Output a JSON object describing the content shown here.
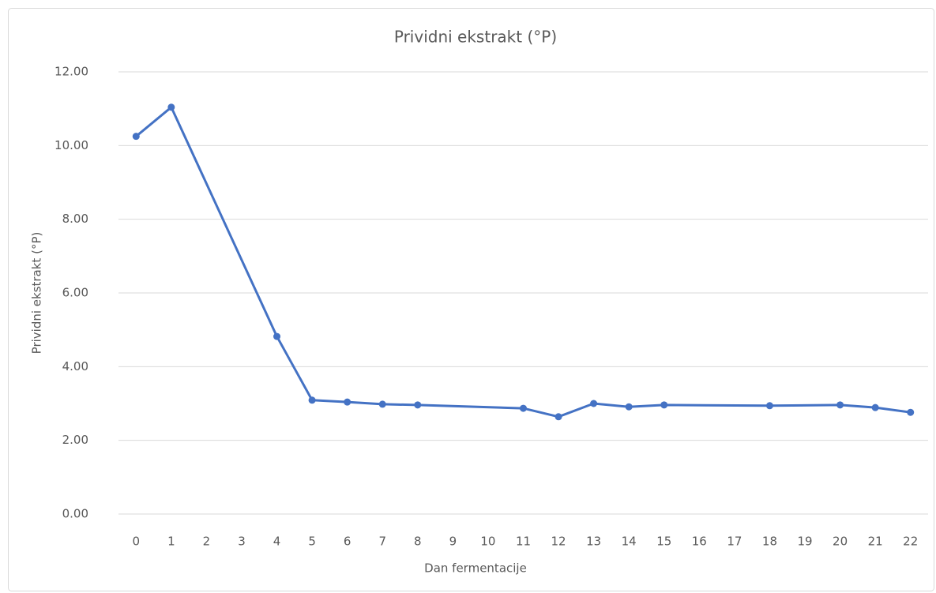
{
  "chart_data": {
    "type": "line",
    "title": "Prividni ekstrakt (°P)",
    "xlabel": "Dan fermentacije",
    "ylabel": "Prividni ekstrakt (°P)",
    "x": [
      0,
      1,
      4,
      5,
      6,
      7,
      8,
      11,
      12,
      13,
      14,
      15,
      18,
      20,
      21,
      22
    ],
    "series": [
      {
        "name": "Prividni ekstrakt (°P)",
        "color": "#4472c4",
        "values": [
          10.25,
          11.04,
          4.82,
          3.09,
          3.04,
          2.98,
          2.96,
          2.87,
          2.64,
          3.0,
          2.91,
          2.96,
          2.94,
          2.96,
          2.89,
          2.76
        ]
      }
    ],
    "xlim": [
      -0.5,
      22.5
    ],
    "xticks": [
      0,
      1,
      2,
      3,
      4,
      5,
      6,
      7,
      8,
      9,
      10,
      11,
      12,
      13,
      14,
      15,
      16,
      17,
      18,
      19,
      20,
      21,
      22
    ],
    "ylim": [
      0,
      12
    ],
    "yticks": [
      {
        "value": 0,
        "label": "0.00"
      },
      {
        "value": 2,
        "label": "2.00"
      },
      {
        "value": 4,
        "label": "4.00"
      },
      {
        "value": 6,
        "label": "6.00"
      },
      {
        "value": 8,
        "label": "8.00"
      },
      {
        "value": 10,
        "label": "10.00"
      },
      {
        "value": 12,
        "label": "12.00"
      }
    ],
    "grid": true
  }
}
